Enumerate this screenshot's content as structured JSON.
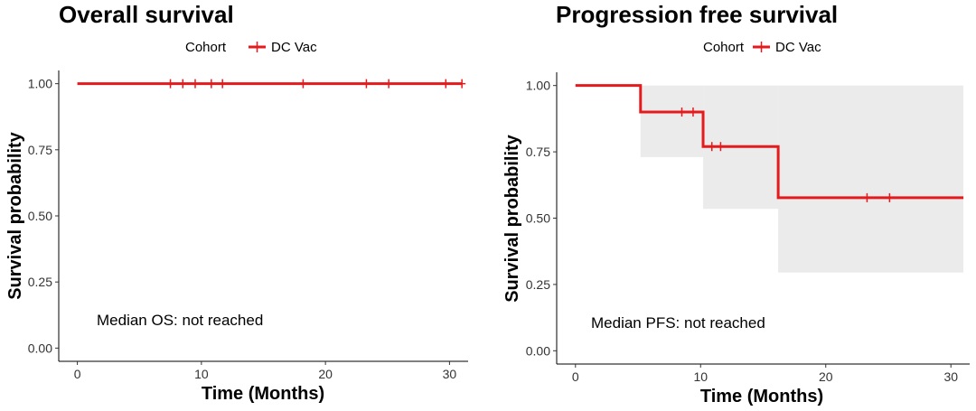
{
  "chart_data": [
    {
      "type": "line",
      "title": "Overall survival",
      "xlabel": "Time (Months)",
      "ylabel": "Survival probability",
      "xlim": [
        -1.5,
        31.5
      ],
      "ylim": [
        -0.05,
        1.05
      ],
      "x_ticks": [
        "0",
        "10",
        "20",
        "30"
      ],
      "y_ticks": [
        "0.00",
        "0.25",
        "0.50",
        "0.75",
        "1.00"
      ],
      "legend": {
        "title": "Cohort",
        "position": "top",
        "items": [
          "DC Vac"
        ]
      },
      "annotation": "Median OS: not reached",
      "series": [
        {
          "name": "DC Vac",
          "color": "#e41a1c",
          "steps": [
            {
              "x": 0,
              "y": 1.0
            },
            {
              "x": 31,
              "y": 1.0
            }
          ],
          "censor_x": [
            7.5,
            8.5,
            9.5,
            10.8,
            11.7,
            18.2,
            23.3,
            25.1,
            29.7,
            31.0
          ],
          "ci_lower": [],
          "ci_upper": []
        }
      ],
      "grid": false
    },
    {
      "type": "line",
      "title": "Progression free survival",
      "xlabel": "Time (Months)",
      "ylabel": "Survival probability",
      "xlim": [
        -1.5,
        31.5
      ],
      "ylim": [
        -0.05,
        1.05
      ],
      "x_ticks": [
        "0",
        "10",
        "20",
        "30"
      ],
      "y_ticks": [
        "0.00",
        "0.25",
        "0.50",
        "0.75",
        "1.00"
      ],
      "legend": {
        "title": "Cohort",
        "position": "top",
        "items": [
          "DC Vac"
        ]
      },
      "annotation": "Median PFS: not reached",
      "series": [
        {
          "name": "DC Vac",
          "color": "#e41a1c",
          "steps": [
            {
              "x": 0,
              "y": 1.0
            },
            {
              "x": 5.2,
              "y": 0.9
            },
            {
              "x": 10.2,
              "y": 0.77
            },
            {
              "x": 16.2,
              "y": 0.577
            },
            {
              "x": 31,
              "y": 0.577
            }
          ],
          "censor_x": [
            8.5,
            9.4,
            10.9,
            11.6,
            23.3,
            25.1
          ],
          "ci_bands": [
            {
              "x0": 5.2,
              "x1": 10.2,
              "lower": 0.73,
              "upper": 1.0
            },
            {
              "x0": 10.2,
              "x1": 16.2,
              "lower": 0.535,
              "upper": 1.0
            },
            {
              "x0": 16.2,
              "x1": 31.0,
              "lower": 0.295,
              "upper": 1.0
            }
          ]
        }
      ],
      "grid": false
    }
  ]
}
